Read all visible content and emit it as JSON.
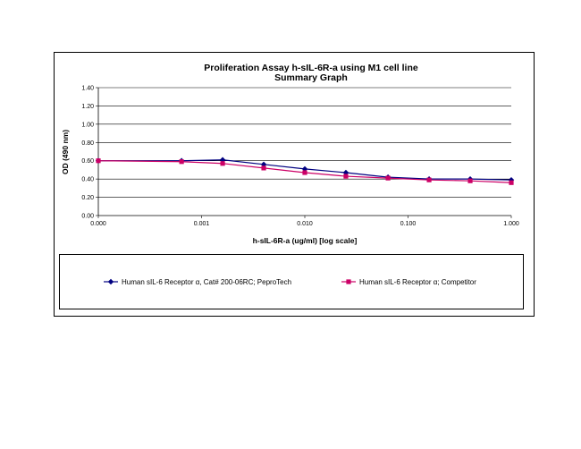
{
  "chart_data": {
    "type": "line",
    "title": "Proliferation Assay h-sIL-6R-a using M1 cell line",
    "subtitle": "Summary Graph",
    "xlabel": "h-sIL-6R-a (ug/ml) [log scale]",
    "ylabel": "OD (490 nm)",
    "x_scale": "log",
    "xlim": [
      0.0001,
      1
    ],
    "ylim": [
      0,
      1.4
    ],
    "x_tick_values": [
      0.0001,
      0.001,
      0.01,
      0.1,
      1
    ],
    "x_tick_labels": [
      "0.000",
      "0.001",
      "0.010",
      "0.100",
      "1.000"
    ],
    "y_ticks": [
      0,
      0.2,
      0.4,
      0.6,
      0.8,
      1.0,
      1.2,
      1.4
    ],
    "y_tick_labels": [
      "0.00",
      "0.20",
      "0.40",
      "0.60",
      "0.80",
      "1.00",
      "1.20",
      "1.40"
    ],
    "grid": "horizontal",
    "legend_position": "bottom",
    "series": [
      {
        "name": "Human sIL-6 Receptor α, Cat# 200-06RC; PeproTech",
        "color": "#000080",
        "marker": "diamond",
        "x": [
          0.0001,
          0.00064,
          0.0016,
          0.004,
          0.01,
          0.025,
          0.064,
          0.16,
          0.4,
          1
        ],
        "y": [
          0.6,
          0.6,
          0.61,
          0.56,
          0.51,
          0.47,
          0.42,
          0.4,
          0.4,
          0.39
        ]
      },
      {
        "name": "Human sIL-6 Receptor α; Competitor",
        "color": "#CC0066",
        "marker": "square",
        "x": [
          0.0001,
          0.00064,
          0.0016,
          0.004,
          0.01,
          0.025,
          0.064,
          0.16,
          0.4,
          1
        ],
        "y": [
          0.6,
          0.59,
          0.57,
          0.52,
          0.47,
          0.43,
          0.41,
          0.39,
          0.38,
          0.36
        ]
      }
    ]
  }
}
